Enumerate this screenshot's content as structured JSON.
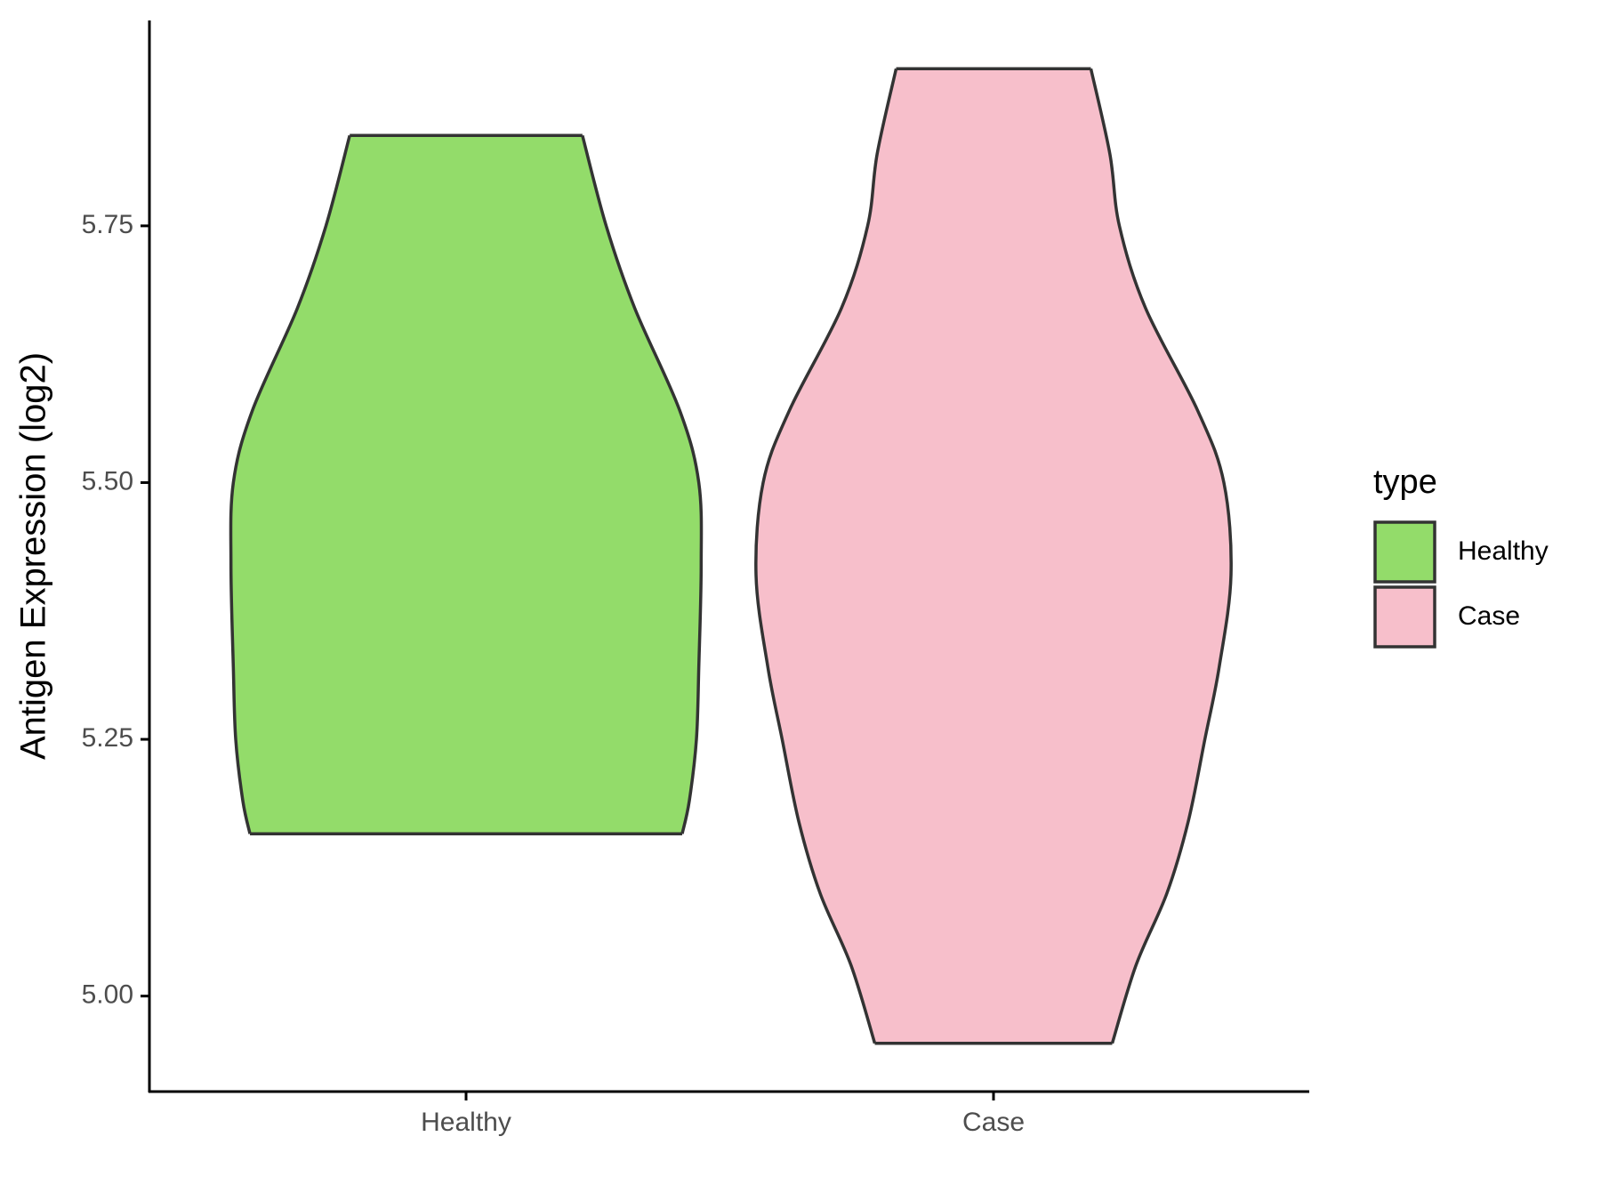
{
  "chart_data": {
    "type": "violin",
    "y_label": "Antigen Expression (log2)",
    "categories": [
      "Healthy",
      "Case"
    ],
    "legend_title": "type",
    "legend": "right",
    "series": [
      {
        "name": "Healthy",
        "color": "#93dc6a",
        "y": [
          5.838,
          5.75,
          5.67,
          5.57,
          5.5,
          5.42,
          5.32,
          5.25,
          5.19,
          5.158
        ],
        "widths": [
          0.49,
          0.59,
          0.71,
          0.9,
          0.98,
          0.99,
          0.98,
          0.97,
          0.94,
          0.91
        ]
      },
      {
        "name": "Case",
        "color": "#f7bfcb",
        "y": [
          5.903,
          5.82,
          5.75,
          5.67,
          5.57,
          5.5,
          5.41,
          5.32,
          5.25,
          5.17,
          5.1,
          5.03,
          4.954
        ],
        "widths": [
          0.41,
          0.49,
          0.53,
          0.64,
          0.86,
          0.97,
          1.0,
          0.95,
          0.89,
          0.82,
          0.73,
          0.6,
          0.5
        ]
      }
    ],
    "ylim": [
      4.907,
      5.95
    ],
    "yticks": [
      {
        "value": 5,
        "label": "5.00"
      },
      {
        "value": 5.25,
        "label": "5.25"
      },
      {
        "value": 5.5,
        "label": "5.50"
      },
      {
        "value": 5.75,
        "label": "5.75"
      }
    ],
    "grid": false
  }
}
